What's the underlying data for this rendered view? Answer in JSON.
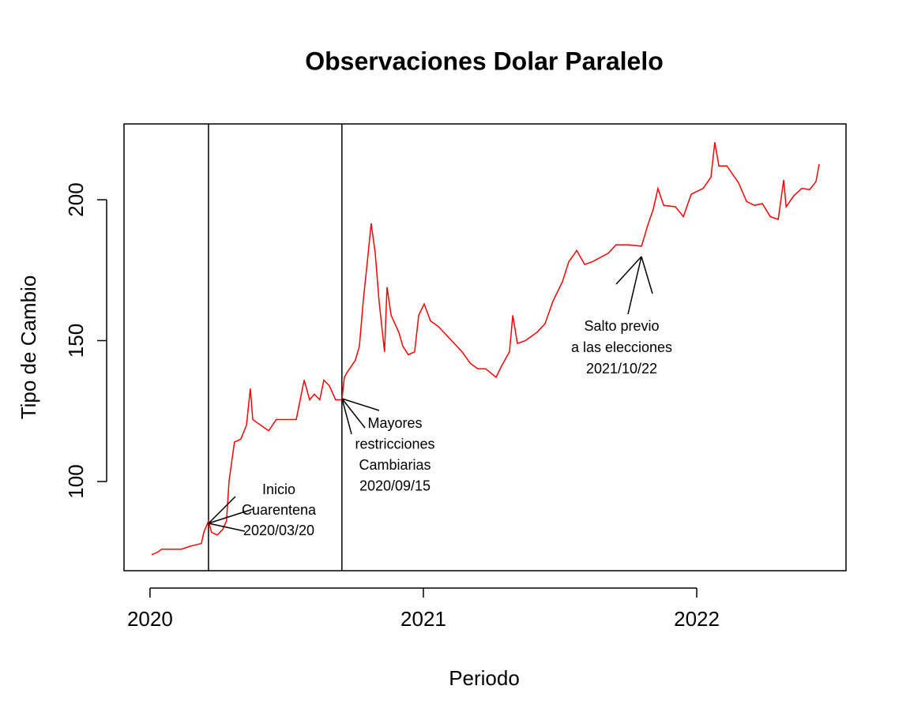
{
  "chart_data": {
    "type": "line",
    "title": "Observaciones Dolar Paralelo",
    "x_label": "Periodo",
    "y_label": "Tipo de Cambio",
    "xlim": [
      2019.905,
      2022.546
    ],
    "ylim": [
      68.35,
      226.9
    ],
    "xticks": [
      2020,
      2021,
      2022
    ],
    "yticks": [
      100,
      150,
      200
    ],
    "vlines": [
      2020.214,
      2020.702
    ],
    "annotations": [
      {
        "lines": [
          "Inicio",
          "Cuarentena",
          "2020/03/20"
        ]
      },
      {
        "lines": [
          "Mayores",
          "restricciones",
          "Cambiarias",
          "2020/09/15"
        ]
      },
      {
        "lines": [
          "Salto previo",
          "a las elecciones",
          "2021/10/22"
        ]
      }
    ],
    "series": [
      {
        "color": "#ff0000",
        "x": [
          2020.006,
          2020.029,
          2020.043,
          2020.116,
          2020.145,
          2020.188,
          2020.197,
          2020.214,
          2020.225,
          2020.246,
          2020.266,
          2020.28,
          2020.289,
          2020.309,
          2020.332,
          2020.353,
          2020.367,
          2020.376,
          2020.405,
          2020.434,
          2020.462,
          2020.491,
          2020.535,
          2020.564,
          2020.584,
          2020.601,
          2020.621,
          2020.636,
          2020.656,
          2020.679,
          2020.702,
          2020.711,
          2020.723,
          2020.751,
          2020.766,
          2020.78,
          2020.795,
          2020.809,
          2020.824,
          2020.838,
          2020.858,
          2020.867,
          2020.882,
          2020.91,
          2020.925,
          2020.945,
          2020.968,
          2020.983,
          2021.003,
          2021.026,
          2021.055,
          2021.084,
          2021.113,
          2021.142,
          2021.171,
          2021.199,
          2021.228,
          2021.266,
          2021.286,
          2021.315,
          2021.327,
          2021.344,
          2021.373,
          2021.416,
          2021.445,
          2021.474,
          2021.509,
          2021.532,
          2021.561,
          2021.59,
          2021.618,
          2021.676,
          2021.705,
          2021.749,
          2021.798,
          2021.821,
          2021.841,
          2021.858,
          2021.879,
          2021.922,
          2021.951,
          2021.98,
          2022.023,
          2022.052,
          2022.066,
          2022.081,
          2022.11,
          2022.153,
          2022.182,
          2022.211,
          2022.24,
          2022.269,
          2022.298,
          2022.318,
          2022.327,
          2022.355,
          2022.384,
          2022.413,
          2022.436,
          2022.448
        ],
        "values": [
          74,
          75,
          76,
          76,
          77,
          78,
          82,
          86,
          82,
          81,
          83,
          86,
          100,
          114,
          115,
          120,
          133,
          122,
          120,
          118,
          122,
          122,
          122,
          136,
          129,
          131,
          129,
          136,
          134,
          129,
          129,
          137,
          139,
          143,
          148,
          164,
          178,
          191.6,
          181,
          164,
          146,
          169,
          159,
          153,
          148,
          145,
          146,
          159,
          163,
          157,
          155,
          152,
          149,
          146,
          142,
          140,
          140,
          137,
          141,
          146,
          159,
          149,
          150,
          153,
          156,
          164,
          171,
          178,
          182,
          177,
          178,
          181,
          184,
          184,
          183.5,
          191,
          196.6,
          204,
          198,
          197.5,
          194,
          202,
          204,
          208,
          220.4,
          212,
          212,
          206,
          199.4,
          198,
          198.6,
          194,
          193,
          207,
          197.5,
          201.4,
          204,
          203.6,
          206.4,
          212.6
        ]
      }
    ]
  }
}
